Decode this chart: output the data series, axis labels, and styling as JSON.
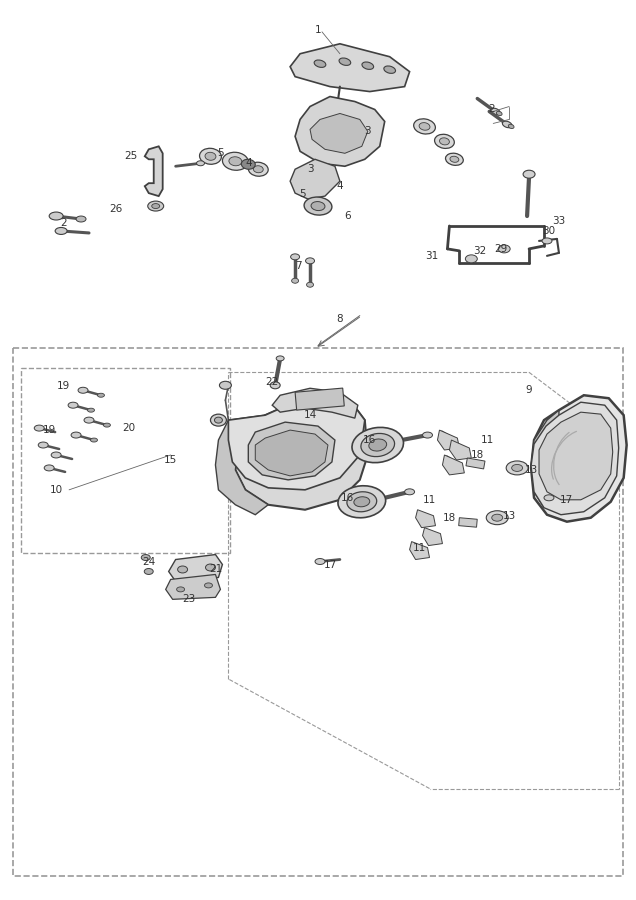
{
  "bg_color": "#ffffff",
  "line_color": "#404040",
  "dash_color": "#999999",
  "label_color": "#333333",
  "figsize": [
    6.36,
    9.0
  ],
  "dpi": 100,
  "upper_labels": [
    [
      "1",
      318,
      28
    ],
    [
      "2",
      492,
      108
    ],
    [
      "2",
      62,
      222
    ],
    [
      "3",
      368,
      130
    ],
    [
      "3",
      310,
      168
    ],
    [
      "4",
      248,
      162
    ],
    [
      "4",
      340,
      185
    ],
    [
      "5",
      220,
      152
    ],
    [
      "5",
      302,
      193
    ],
    [
      "6",
      348,
      215
    ],
    [
      "7",
      298,
      265
    ],
    [
      "8",
      340,
      318
    ],
    [
      "25",
      130,
      155
    ],
    [
      "26",
      115,
      208
    ],
    [
      "29",
      502,
      248
    ],
    [
      "30",
      550,
      230
    ],
    [
      "31",
      432,
      255
    ],
    [
      "32",
      480,
      250
    ],
    [
      "33",
      560,
      220
    ]
  ],
  "lower_labels": [
    [
      "9",
      530,
      390
    ],
    [
      "10",
      55,
      490
    ],
    [
      "11",
      488,
      440
    ],
    [
      "11",
      430,
      500
    ],
    [
      "11",
      420,
      548
    ],
    [
      "13",
      532,
      470
    ],
    [
      "13",
      510,
      516
    ],
    [
      "14",
      310,
      415
    ],
    [
      "15",
      170,
      460
    ],
    [
      "16",
      370,
      440
    ],
    [
      "16",
      348,
      498
    ],
    [
      "17",
      568,
      500
    ],
    [
      "17",
      330,
      566
    ],
    [
      "18",
      478,
      455
    ],
    [
      "18",
      450,
      518
    ],
    [
      "19",
      62,
      386
    ],
    [
      "19",
      48,
      430
    ],
    [
      "20",
      128,
      428
    ],
    [
      "21",
      215,
      570
    ],
    [
      "22",
      272,
      382
    ],
    [
      "23",
      188,
      600
    ],
    [
      "24",
      148,
      562
    ]
  ]
}
